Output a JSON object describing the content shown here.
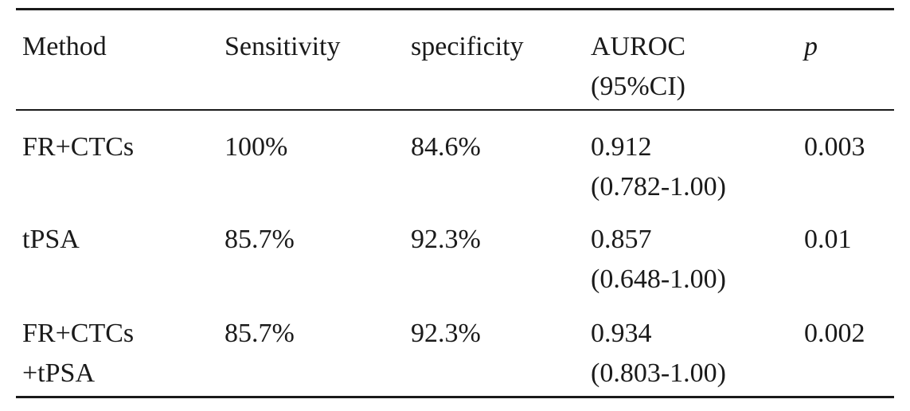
{
  "table": {
    "headers": [
      "Method",
      "Sensitivity",
      "specificity",
      "AUROC\n(95%CI)",
      "p"
    ],
    "rows": [
      [
        "FR+CTCs",
        "100%",
        "84.6%",
        "0.912\n(0.782-1.00)",
        "0.003"
      ],
      [
        "tPSA",
        "85.7%",
        "92.3%",
        "0.857\n(0.648-1.00)",
        "0.01"
      ],
      [
        "FR+CTCs\n+tPSA",
        "85.7%",
        "92.3%",
        "0.934\n(0.803-1.00)",
        "0.002"
      ]
    ]
  }
}
